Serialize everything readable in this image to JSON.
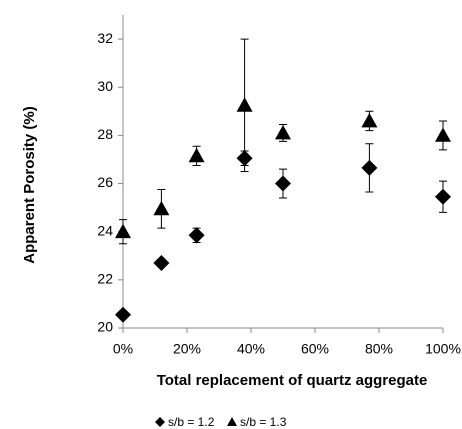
{
  "chart_data": {
    "type": "scatter",
    "x_label": "Total replacement of quartz aggregate",
    "y_label": "Apparent Porosity (%)",
    "xlim": [
      0,
      100
    ],
    "xticks": [
      {
        "value": 0,
        "label": "0%"
      },
      {
        "value": 20,
        "label": "20%"
      },
      {
        "value": 40,
        "label": "40%"
      },
      {
        "value": 60,
        "label": "60%"
      },
      {
        "value": 80,
        "label": "80%"
      },
      {
        "value": 100,
        "label": "100%"
      }
    ],
    "ylim": [
      20,
      33
    ],
    "yticks": [
      20,
      22,
      24,
      26,
      28,
      30,
      32
    ],
    "grid": false,
    "legend": "bottom",
    "series": [
      {
        "name": "s/b = 1.2",
        "color": "#000000",
        "marker": "diamond",
        "x": [
          0,
          12,
          23,
          38,
          50,
          77,
          100
        ],
        "values": [
          20.55,
          22.7,
          23.85,
          27.05,
          26.0,
          26.65,
          25.45
        ],
        "errors": [
          0.1,
          0.15,
          0.3,
          0.3,
          0.6,
          1.0,
          0.65
        ]
      },
      {
        "name": "s/b = 1.3",
        "color": "#000000",
        "marker": "triangle",
        "x": [
          0,
          12,
          23,
          38,
          50,
          77,
          100
        ],
        "values": [
          24.0,
          24.95,
          27.15,
          29.25,
          28.1,
          28.6,
          28.0
        ],
        "errors": [
          0.5,
          0.8,
          0.4,
          2.75,
          0.35,
          0.4,
          0.6
        ]
      }
    ]
  }
}
